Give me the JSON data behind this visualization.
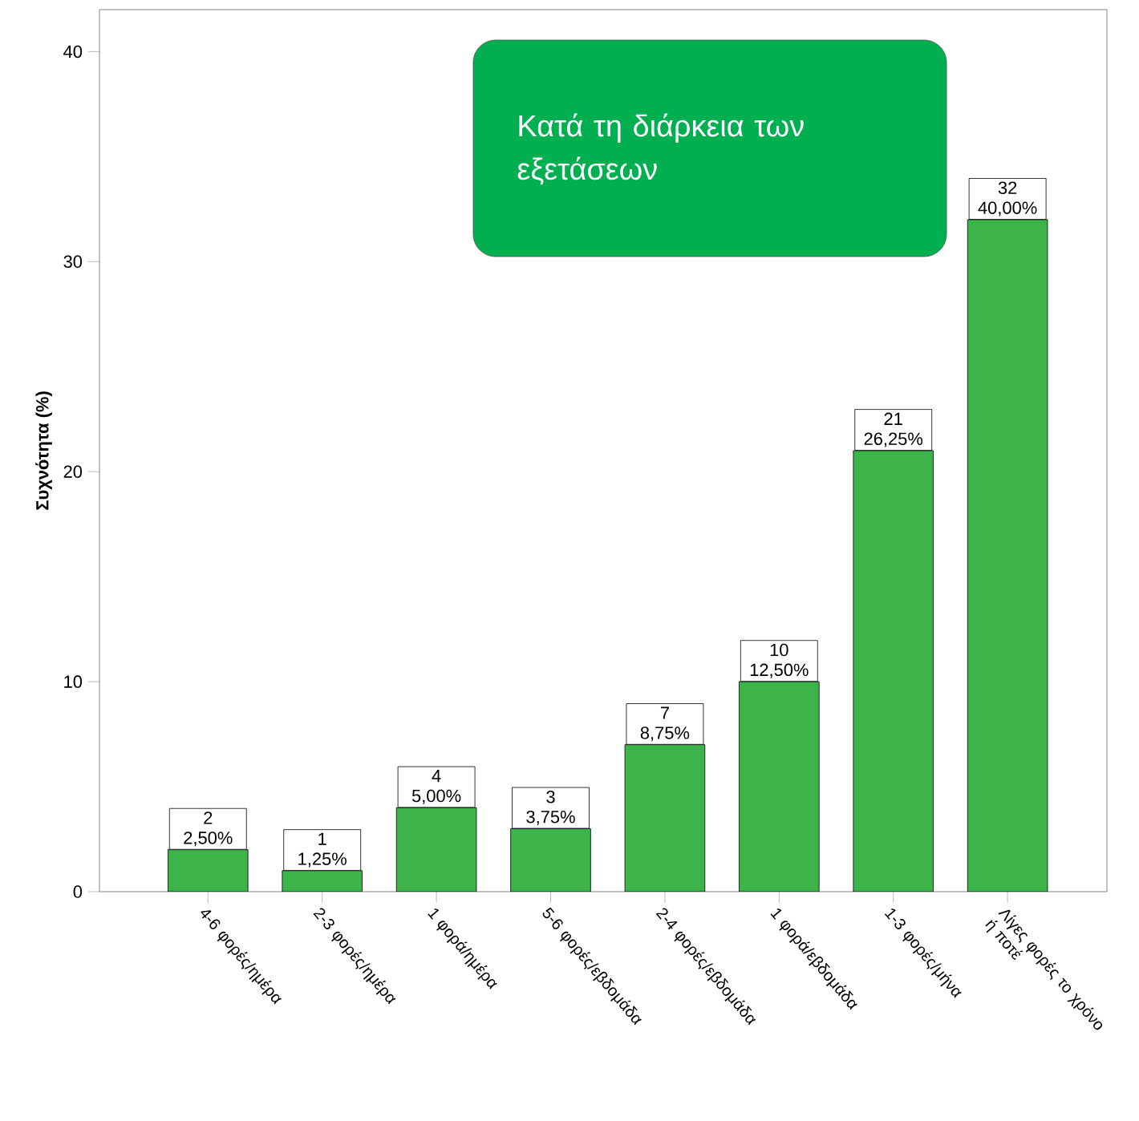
{
  "chart_data": {
    "type": "bar",
    "categories": [
      "4-6 φορές/ημέρα",
      "2-3 φορές/ημέρα",
      "1 φορά/ημέρα",
      "5-6 φορές/εβδομάδα",
      "2-4 φορές/εβδομάδα",
      "1 φορά/εβδομάδα",
      "1-3 φορές/μήνα",
      "Λίγες φορές το χρόνο ή ποτέ"
    ],
    "values": [
      2,
      1,
      4,
      3,
      7,
      10,
      21,
      32
    ],
    "value_labels": [
      "2 2,50%",
      "1 1,25%",
      "4 5,00%",
      "3 3,75%",
      "7 8,75%",
      "10 12,50%",
      "21 26,25%",
      "32 40,00%"
    ],
    "color": "#3cb44a",
    "ylabel": "Συχνότητα (%)",
    "ylim": [
      0,
      42
    ],
    "yticks": [
      0,
      10,
      20,
      30,
      40
    ],
    "annotations": [
      "Κατά τη διάρκεια των εξετάσεων"
    ]
  }
}
